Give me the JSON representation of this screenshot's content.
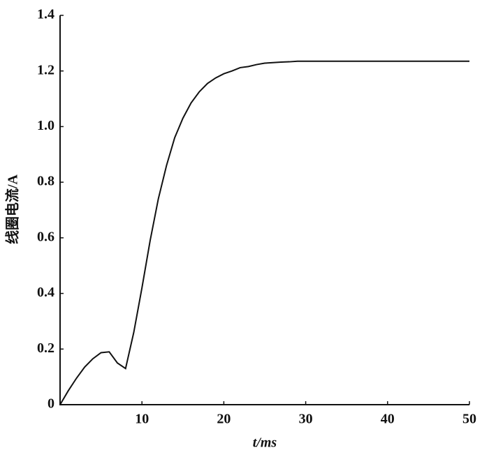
{
  "chart_data": {
    "type": "line",
    "x_label": "t/ms",
    "y_label": "线圈电流/A",
    "x": [
      0,
      1,
      2,
      3,
      4,
      5,
      6,
      7,
      8,
      9,
      10,
      11,
      12,
      13,
      14,
      15,
      16,
      17,
      18,
      19,
      20,
      21,
      22,
      23,
      24,
      25,
      26,
      27,
      28,
      29,
      50
    ],
    "series": [
      {
        "color": "#111111",
        "values": [
          0,
          0.05,
          0.095,
          0.135,
          0.165,
          0.187,
          0.19,
          0.15,
          0.13,
          0.26,
          0.42,
          0.59,
          0.74,
          0.86,
          0.96,
          1.03,
          1.085,
          1.125,
          1.155,
          1.175,
          1.19,
          1.2,
          1.212,
          1.216,
          1.223,
          1.228,
          1.23,
          1.232,
          1.233,
          1.235,
          1.235
        ]
      }
    ],
    "xlim": [
      0,
      50
    ],
    "xticks": [
      10,
      20,
      30,
      40,
      50
    ],
    "ylim": [
      0,
      1.4
    ],
    "yticks": [
      0,
      0.2,
      0.4,
      0.6,
      0.8,
      {
        "value": 1,
        "label": "1.0"
      },
      1.2,
      1.4
    ]
  }
}
